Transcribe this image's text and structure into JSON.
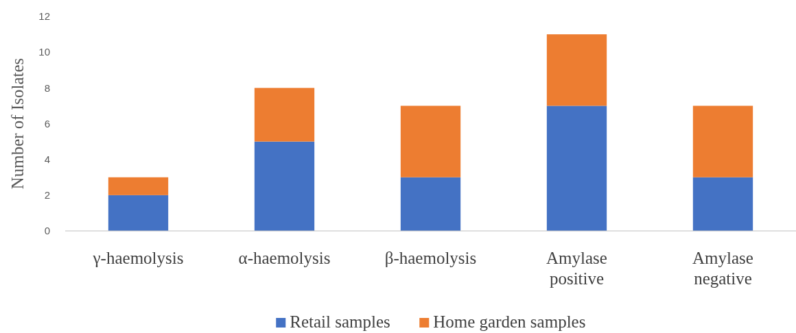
{
  "chart_data": {
    "type": "bar",
    "ylabel": "Number of Isolates",
    "categories": [
      "γ-haemolysis",
      "α-haemolysis",
      "β-haemolysis",
      "Amylase positive",
      "Amylase negative"
    ],
    "series": [
      {
        "name": "Retail samples",
        "color": "#4472c4",
        "values": [
          2,
          5,
          3,
          7,
          3
        ]
      },
      {
        "name": "Home garden samples",
        "color": "#ed7d31",
        "values": [
          1,
          3,
          4,
          4,
          4
        ]
      }
    ],
    "stacked": true,
    "ylim": [
      0,
      12
    ],
    "yticks": [
      0,
      2,
      4,
      6,
      8,
      10,
      12
    ],
    "grid": false,
    "legend": "bottom"
  }
}
